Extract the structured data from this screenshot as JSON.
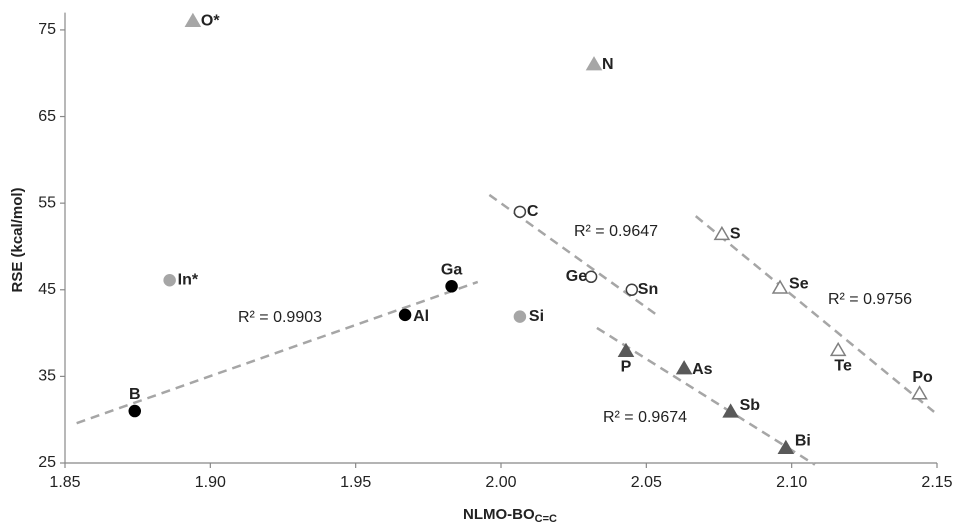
{
  "chart_data": {
    "type": "scatter",
    "xlabel": "NLMO-BO",
    "xlabel_sub": "C=C",
    "ylabel": "RSE (kcal/mol)",
    "xlim": [
      1.85,
      2.15
    ],
    "ylim": [
      25,
      77
    ],
    "xticks": [
      1.85,
      {
        "value": 1.9,
        "label": "1.90"
      },
      1.95,
      {
        "value": 2,
        "label": "2.00"
      },
      2.05,
      {
        "value": 2.1,
        "label": "2.10"
      },
      2.15
    ],
    "yticks": [
      25,
      35,
      45,
      55,
      65,
      75
    ],
    "grid": false,
    "series": [
      {
        "marker": "circle",
        "color": "#000000",
        "fill": "#000000",
        "labels": [
          "B",
          "Al",
          "Ga"
        ],
        "x": [
          1.874,
          1.967,
          1.983
        ],
        "values": [
          31,
          42.1,
          45.4
        ]
      },
      {
        "marker": "circle",
        "color": "#a6a6a6",
        "fill": "#a6a6a6",
        "labels": [
          "In*",
          "Si"
        ],
        "x": [
          1.886,
          2.0065
        ],
        "values": [
          46.1,
          41.9
        ]
      },
      {
        "marker": "circle",
        "color": "#404040",
        "fill": "#ffffff",
        "labels": [
          "C",
          "Ge",
          "Sn"
        ],
        "x": [
          2.0065,
          2.031,
          2.045
        ],
        "values": [
          54,
          46.5,
          45
        ]
      },
      {
        "marker": "triangle",
        "color": "#a6a6a6",
        "fill": "#a6a6a6",
        "labels": [
          "O*",
          "N"
        ],
        "x": [
          1.894,
          2.032
        ],
        "values": [
          76,
          71
        ]
      },
      {
        "marker": "triangle",
        "color": "#595959",
        "fill": "#595959",
        "labels": [
          "P",
          "As",
          "Sb",
          "Bi"
        ],
        "x": [
          2.043,
          2.063,
          2.079,
          2.098
        ],
        "values": [
          37.9,
          35.9,
          30.9,
          26.7
        ]
      },
      {
        "marker": "triangle",
        "color": "#808080",
        "fill": "#ffffff",
        "labels": [
          "S",
          "Se",
          "Te",
          "Po"
        ],
        "x": [
          2.076,
          2.096,
          2.116,
          2.144
        ],
        "values": [
          51.4,
          45.2,
          38,
          33
        ]
      }
    ],
    "trendlines": [
      {
        "label": "R² = 0.9903",
        "x": [
          1.854,
          1.992
        ],
        "values": [
          29.6,
          45.9
        ]
      },
      {
        "label": "R² = 0.9647",
        "x": [
          1.996,
          2.054
        ],
        "values": [
          55.95,
          42
        ]
      },
      {
        "label": "R² = 0.9756",
        "x": [
          2.067,
          2.149
        ],
        "values": [
          53.5,
          30.9
        ]
      },
      {
        "label": "R² = 0.9674",
        "x": [
          2.033,
          2.108
        ],
        "values": [
          40.6,
          24.8
        ]
      }
    ],
    "trendline_color": "#a6a6a6"
  }
}
